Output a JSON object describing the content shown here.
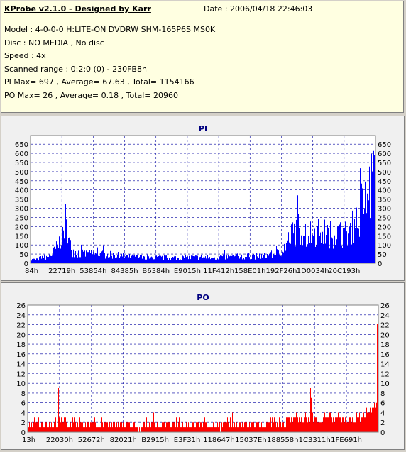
{
  "info": {
    "title": "KProbe v2.1.0 - Designed by Karr",
    "date": "Date : 2006/04/18 22:46:03",
    "model": "Model : 4-0-0-0 H:LITE-ON DVDRW SHM-165P6S MS0K",
    "disc": "Disc : NO MEDIA , No disc",
    "speed": "Speed : 4x",
    "range": "Scanned range : 0:2:0 (0) - 230FB8h",
    "pi": "PI Max= 697 , Average= 67.63 , Total= 1154166",
    "po": "PO Max= 26 , Average= 0.18 , Total= 20960"
  },
  "colors": {
    "pi": "#0000ff",
    "po": "#ff0000",
    "grid": "#0000a0"
  },
  "chart_data": [
    {
      "type": "bar",
      "title": "PI",
      "ylim": [
        0,
        697
      ],
      "yticks": [
        0,
        50,
        100,
        150,
        200,
        250,
        300,
        350,
        400,
        450,
        500,
        550,
        600,
        650
      ],
      "xticklabels": [
        "84h",
        "22719h",
        "53854h",
        "84385h",
        "B6384h",
        "E9015h",
        "11F412h",
        "158E01h",
        "192F26h",
        "1D0034h",
        "20C193h"
      ],
      "grid": true,
      "profile": [
        [
          0,
          20
        ],
        [
          0.02,
          25
        ],
        [
          0.06,
          50
        ],
        [
          0.08,
          110
        ],
        [
          0.095,
          210
        ],
        [
          0.1,
          280
        ],
        [
          0.105,
          160
        ],
        [
          0.12,
          75
        ],
        [
          0.15,
          55
        ],
        [
          0.2,
          55
        ],
        [
          0.26,
          45
        ],
        [
          0.3,
          35
        ],
        [
          0.4,
          32
        ],
        [
          0.5,
          35
        ],
        [
          0.6,
          40
        ],
        [
          0.68,
          45
        ],
        [
          0.71,
          55
        ],
        [
          0.73,
          80
        ],
        [
          0.75,
          150
        ],
        [
          0.77,
          210
        ],
        [
          0.8,
          180
        ],
        [
          0.84,
          190
        ],
        [
          0.88,
          170
        ],
        [
          0.92,
          185
        ],
        [
          0.95,
          260
        ],
        [
          0.97,
          380
        ],
        [
          0.99,
          480
        ],
        [
          1.0,
          520
        ]
      ]
    },
    {
      "type": "bar",
      "title": "PO",
      "ylim": [
        0,
        26
      ],
      "yticks": [
        0,
        2,
        4,
        6,
        8,
        10,
        12,
        14,
        16,
        18,
        20,
        22,
        24,
        26
      ],
      "xticklabels": [
        "13h",
        "22030h",
        "52672h",
        "82021h",
        "B2915h",
        "E3F31h",
        "118647h",
        "15037Eh",
        "188558h",
        "1C3311h",
        "1FE691h"
      ],
      "grid": true,
      "profile": [
        [
          0,
          1
        ],
        [
          0.1,
          1.2
        ],
        [
          0.3,
          0.8
        ],
        [
          0.5,
          0.9
        ],
        [
          0.68,
          0.9
        ],
        [
          0.74,
          1.6
        ],
        [
          0.8,
          2.6
        ],
        [
          0.86,
          2.2
        ],
        [
          0.92,
          1.8
        ],
        [
          0.96,
          2.8
        ],
        [
          1.0,
          5
        ]
      ]
    }
  ]
}
